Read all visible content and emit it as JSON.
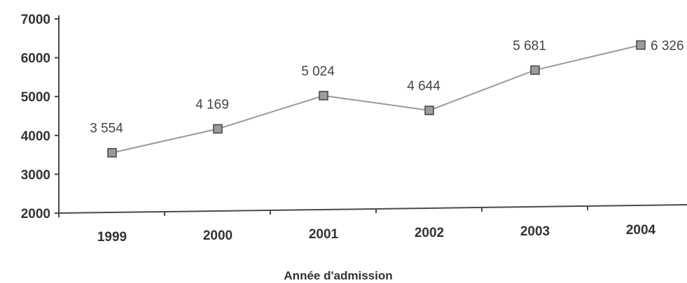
{
  "chart_data": {
    "type": "line",
    "x": [
      "1999",
      "2000",
      "2001",
      "2002",
      "2003",
      "2004"
    ],
    "series": [
      {
        "values": [
          3554,
          4169,
          5024,
          4644,
          5681,
          6326
        ]
      }
    ],
    "data_labels": [
      "3 554",
      "4 169",
      "5 024",
      "4 644",
      "5 681",
      "6 326"
    ],
    "xlabel": "Année d'admission",
    "ylabel": "",
    "title": "",
    "ylim": [
      2000,
      7000
    ],
    "yticks": [
      2000,
      3000,
      4000,
      5000,
      6000,
      7000
    ],
    "ytick_labels": [
      "2000",
      "3000",
      "4000",
      "5000",
      "6000",
      "7000"
    ],
    "grid": false,
    "legend": "none"
  },
  "colors": {
    "line": "#9a9a9a",
    "marker_fill": "#9c9c9c",
    "marker_stroke": "#444444",
    "axis": "#4a4a4a",
    "text": "#333333"
  }
}
